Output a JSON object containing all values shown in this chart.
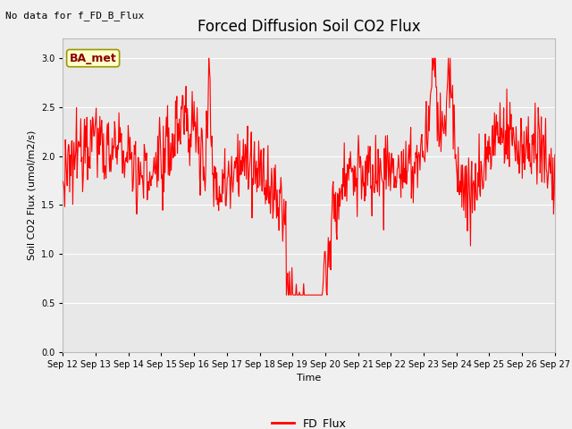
{
  "title": "Forced Diffusion Soil CO2 Flux",
  "xlabel": "Time",
  "ylabel": "Soil CO2 Flux (umol/m2/s)",
  "no_data_text": "No data for f_FD_B_Flux",
  "legend_label": "FD_Flux",
  "ba_met_label": "BA_met",
  "line_color": "#FF0000",
  "fig_bg_color": "#f0f0f0",
  "plot_bg_color": "#e8e8e8",
  "grid_color": "#ffffff",
  "ylim": [
    0.0,
    3.2
  ],
  "yticks": [
    0.0,
    0.5,
    1.0,
    1.5,
    2.0,
    2.5,
    3.0
  ],
  "x_start": 12,
  "x_end": 27,
  "xtick_positions": [
    12,
    13,
    14,
    15,
    16,
    17,
    18,
    19,
    20,
    21,
    22,
    23,
    24,
    25,
    26,
    27
  ],
  "xtick_labels": [
    "Sep 12",
    "Sep 13",
    "Sep 14",
    "Sep 15",
    "Sep 16",
    "Sep 17",
    "Sep 18",
    "Sep 19",
    "Sep 20",
    "Sep 21",
    "Sep 22",
    "Sep 23",
    "Sep 24",
    "Sep 25",
    "Sep 26",
    "Sep 27"
  ],
  "title_fontsize": 12,
  "label_fontsize": 8,
  "tick_fontsize": 7,
  "no_data_fontsize": 8,
  "ba_met_fontsize": 9,
  "legend_fontsize": 9
}
